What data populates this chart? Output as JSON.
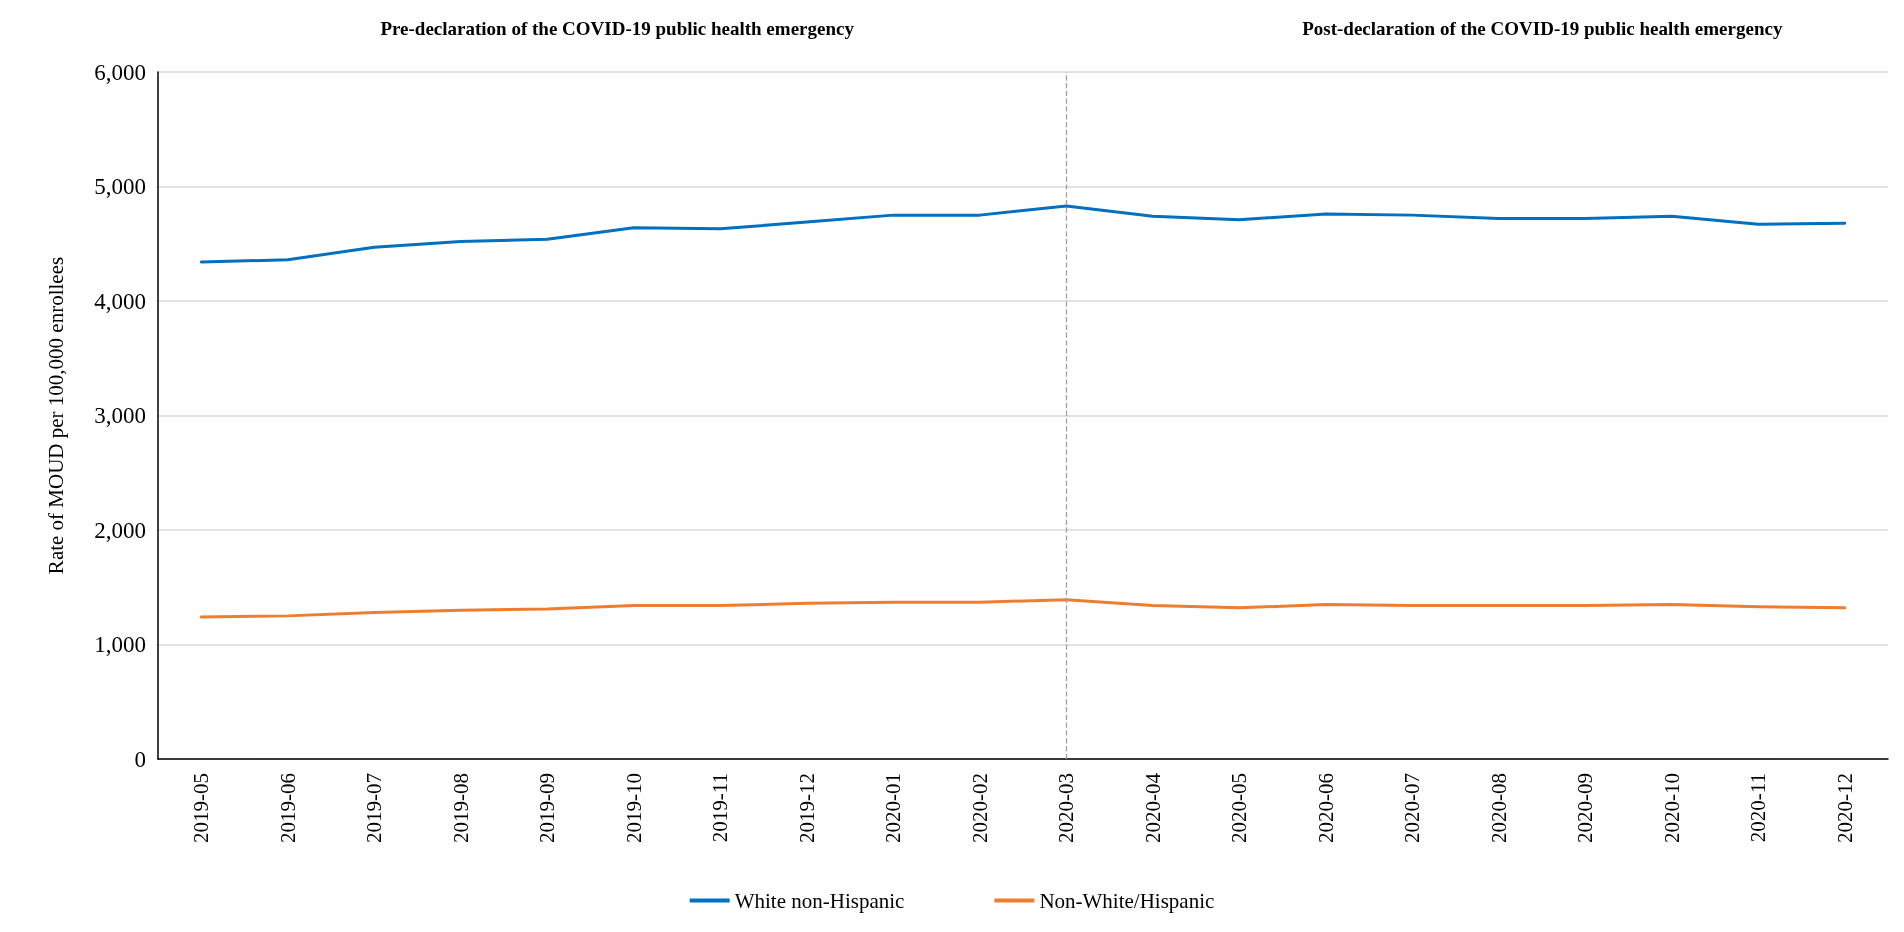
{
  "chart_data": {
    "type": "line",
    "ylabel": "Rate of MOUD per 100,000 enrollees",
    "annotations": [
      "Pre-declaration of the COVID-19 public health emergency",
      "Post-declaration of the COVID-19 public health emergency"
    ],
    "categories": [
      "2019-05",
      "2019-06",
      "2019-07",
      "2019-08",
      "2019-09",
      "2019-10",
      "2019-11",
      "2019-12",
      "2020-01",
      "2020-02",
      "2020-03",
      "2020-04",
      "2020-05",
      "2020-06",
      "2020-07",
      "2020-08",
      "2020-09",
      "2020-10",
      "2020-11",
      "2020-12"
    ],
    "series": [
      {
        "name": "White non-Hispanic",
        "color": "#0070c0",
        "values": [
          4340,
          4360,
          4470,
          4520,
          4540,
          4640,
          4630,
          4690,
          4750,
          4750,
          4830,
          4740,
          4710,
          4760,
          4750,
          4720,
          4720,
          4740,
          4670,
          4680
        ]
      },
      {
        "name": "Non-White/Hispanic",
        "color": "#ed7d31",
        "values": [
          1240,
          1250,
          1280,
          1300,
          1310,
          1340,
          1340,
          1360,
          1370,
          1370,
          1390,
          1340,
          1320,
          1350,
          1340,
          1340,
          1340,
          1350,
          1330,
          1320
        ]
      }
    ],
    "ylim": [
      0,
      6000
    ],
    "yticks": [
      0,
      {
        "value": 1000,
        "label": "1,000"
      },
      {
        "value": 2000,
        "label": "2,000"
      },
      {
        "value": 3000,
        "label": "3,000"
      },
      {
        "value": 4000,
        "label": "4,000"
      },
      {
        "value": 5000,
        "label": "5,000"
      },
      {
        "value": 6000,
        "label": "6,000"
      }
    ],
    "grid": "y",
    "legend": "bottom",
    "marker": "none",
    "line_style": "solid",
    "ref_lines": [
      {
        "axis": "x",
        "value": "2020-03",
        "color": "#a0a0a0",
        "line_style": "dashed"
      }
    ]
  }
}
